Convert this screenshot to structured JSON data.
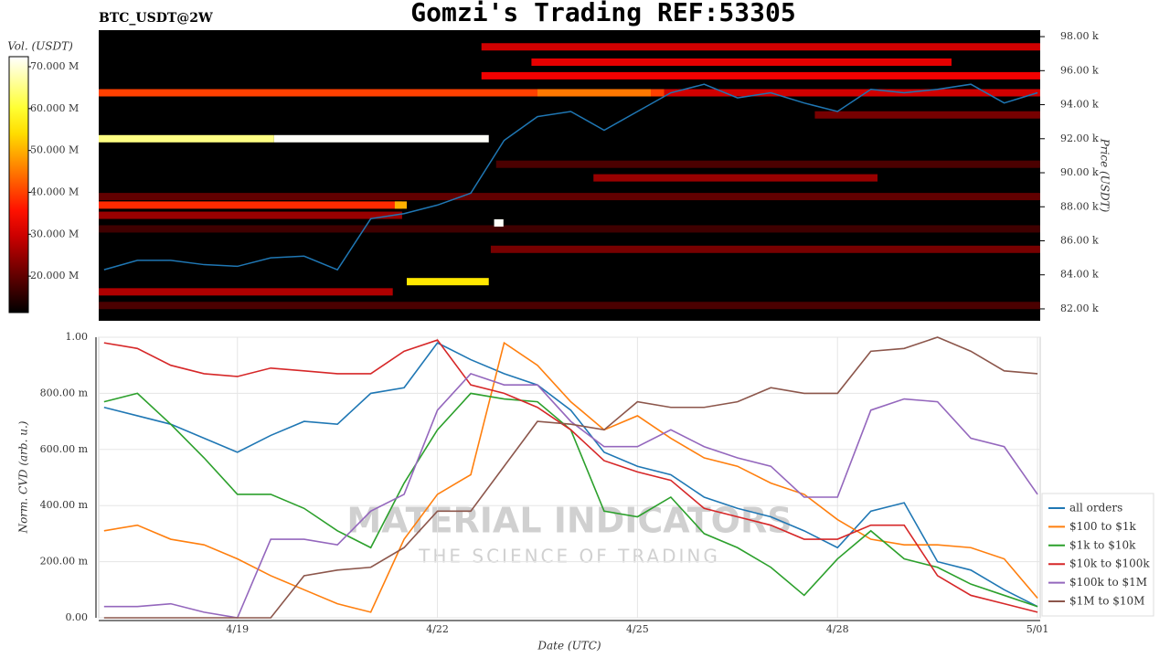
{
  "chart_data": [
    {
      "type": "heatmap",
      "title": "Gomzi's Trading REF:53305",
      "subtitle": "BTC_USDT@2W",
      "y_label": "Price (USDT)",
      "xlim": [
        16.92,
        31.04
      ],
      "ylim": [
        81.3,
        98.38
      ],
      "yticks": [
        {
          "value": 82,
          "label": "82.00 k"
        },
        {
          "value": 84,
          "label": "84.00 k"
        },
        {
          "value": 86,
          "label": "86.00 k"
        },
        {
          "value": 88,
          "label": "88.00 k"
        },
        {
          "value": 90,
          "label": "90.00 k"
        },
        {
          "value": 92,
          "label": "92.00 k"
        },
        {
          "value": 94,
          "label": "94.00 k"
        },
        {
          "value": 96,
          "label": "96.00 k"
        },
        {
          "value": 98,
          "label": "98.00 k"
        }
      ],
      "colorbar": {
        "label": "Vol. (USDT)",
        "lim": [
          11.3,
          72.4
        ],
        "colormap": "hot",
        "ticks": [
          {
            "value": 20,
            "label": "20.000 M"
          },
          {
            "value": 30,
            "label": "30.000 M"
          },
          {
            "value": 40,
            "label": "40.000 M"
          },
          {
            "value": 50,
            "label": "50.000 M"
          },
          {
            "value": 60,
            "label": "60.000 M"
          },
          {
            "value": 70,
            "label": "70.000 M"
          }
        ]
      },
      "levels": [
        {
          "price": 82.2,
          "x": [
            16.92,
            31.04
          ],
          "volume": 18
        },
        {
          "price": 83.0,
          "x": [
            16.92,
            21.33
          ],
          "volume": 27
        },
        {
          "price": 85.5,
          "x": [
            22.8,
            31.04
          ],
          "volume": 22
        },
        {
          "price": 86.7,
          "x": [
            16.92,
            31.04
          ],
          "volume": 17
        },
        {
          "price": 87.5,
          "x": [
            16.92,
            21.47
          ],
          "volume": 25
        },
        {
          "price": 88.6,
          "x": [
            16.92,
            31.04
          ],
          "volume": 20
        },
        {
          "price": 90.5,
          "x": [
            22.88,
            31.04
          ],
          "volume": 18
        },
        {
          "price": 89.7,
          "x": [
            24.34,
            28.6
          ],
          "volume": 25
        },
        {
          "price": 93.4,
          "x": [
            27.66,
            31.04
          ],
          "volume": 22
        },
        {
          "price": 97.4,
          "x": [
            22.66,
            31.04
          ],
          "volume": 30
        },
        {
          "price": 96.5,
          "x": [
            23.41,
            29.71
          ],
          "volume": 32
        },
        {
          "price": 95.7,
          "x": [
            22.66,
            31.04
          ],
          "volume": 33
        },
        {
          "price": 94.7,
          "x": [
            25.4,
            31.04
          ],
          "volume": 30
        },
        {
          "price": 94.7,
          "x": [
            16.92,
            25.4
          ],
          "volume": 40
        },
        {
          "price": 94.7,
          "x": [
            23.5,
            25.2
          ],
          "volume": 45
        },
        {
          "price": 88.1,
          "x": [
            16.92,
            21.47
          ],
          "volume": 38
        },
        {
          "price": 88.1,
          "x": [
            21.36,
            21.54
          ],
          "volume": 50
        },
        {
          "price": 83.6,
          "x": [
            21.54,
            22.77
          ],
          "volume": 55
        },
        {
          "price": 92.0,
          "x": [
            16.92,
            19.55
          ],
          "volume": 65
        },
        {
          "price": 92.0,
          "x": [
            19.55,
            22.77
          ],
          "volume": 72
        },
        {
          "price": 87.05,
          "x": [
            22.85,
            22.99
          ],
          "volume": 72
        }
      ],
      "x": [
        17,
        17.5,
        18,
        18.5,
        19,
        19.5,
        20,
        20.5,
        21,
        21.5,
        22,
        22.5,
        23,
        23.5,
        24,
        24.5,
        25,
        25.5,
        26,
        26.5,
        27,
        27.5,
        28,
        28.5,
        29,
        29.5,
        30,
        30.5,
        31
      ],
      "price": {
        "color": "#1f77b4",
        "values": [
          84.3,
          84.85,
          84.85,
          84.6,
          84.5,
          85.0,
          85.1,
          84.3,
          87.3,
          87.6,
          88.1,
          88.8,
          91.9,
          93.3,
          93.6,
          92.5,
          93.6,
          94.7,
          95.2,
          94.4,
          94.7,
          94.1,
          93.6,
          94.9,
          94.7,
          94.9,
          95.2,
          94.1,
          94.7
        ]
      }
    },
    {
      "type": "line",
      "x_label": "Date (UTC)",
      "y_label": "Norm. CVD (arb. u.)",
      "xlim": [
        16.92,
        31.04
      ],
      "ylim": [
        0,
        1
      ],
      "xticks": [
        {
          "value": 19,
          "label": "4/19"
        },
        {
          "value": 22,
          "label": "4/22"
        },
        {
          "value": 25,
          "label": "4/25"
        },
        {
          "value": 28,
          "label": "4/28"
        },
        {
          "value": 31,
          "label": "5/01"
        }
      ],
      "yticks": [
        {
          "value": 0,
          "label": "0.00"
        },
        {
          "value": 0.2,
          "label": "200.00 m"
        },
        {
          "value": 0.4,
          "label": "400.00 m"
        },
        {
          "value": 0.6,
          "label": "600.00 m"
        },
        {
          "value": 0.8,
          "label": "800.00 m"
        },
        {
          "value": 1,
          "label": "1.00"
        }
      ],
      "grid": true,
      "legend": "right",
      "watermark": {
        "title": "MATERIAL INDICATORS",
        "subtitle": "THE SCIENCE OF TRADING"
      },
      "x": [
        17,
        17.5,
        18,
        18.5,
        19,
        19.5,
        20,
        20.5,
        21,
        21.5,
        22,
        22.5,
        23,
        23.5,
        24,
        24.5,
        25,
        25.5,
        26,
        26.5,
        27,
        27.5,
        28,
        28.5,
        29,
        29.5,
        30,
        30.5,
        31
      ],
      "series": [
        {
          "name": "all orders",
          "color": "#1f77b4",
          "values": [
            0.75,
            0.72,
            0.69,
            0.64,
            0.59,
            0.65,
            0.7,
            0.69,
            0.8,
            0.82,
            0.98,
            0.92,
            0.87,
            0.83,
            0.74,
            0.59,
            0.54,
            0.51,
            0.43,
            0.39,
            0.36,
            0.31,
            0.25,
            0.38,
            0.41,
            0.2,
            0.17,
            0.1,
            0.04
          ]
        },
        {
          "name": "$100 to $1k",
          "color": "#ff7f0e",
          "values": [
            0.31,
            0.33,
            0.28,
            0.26,
            0.21,
            0.15,
            0.1,
            0.05,
            0.02,
            0.28,
            0.44,
            0.51,
            0.98,
            0.9,
            0.77,
            0.67,
            0.72,
            0.64,
            0.57,
            0.54,
            0.48,
            0.44,
            0.35,
            0.28,
            0.26,
            0.26,
            0.25,
            0.21,
            0.07
          ]
        },
        {
          "name": "$1k to $10k",
          "color": "#2ca02c",
          "values": [
            0.77,
            0.8,
            0.69,
            0.57,
            0.44,
            0.44,
            0.39,
            0.31,
            0.25,
            0.48,
            0.67,
            0.8,
            0.78,
            0.77,
            0.67,
            0.38,
            0.36,
            0.43,
            0.3,
            0.25,
            0.18,
            0.08,
            0.21,
            0.31,
            0.21,
            0.18,
            0.12,
            0.08,
            0.04
          ]
        },
        {
          "name": "$10k to $100k",
          "color": "#d62728",
          "values": [
            0.98,
            0.96,
            0.9,
            0.87,
            0.86,
            0.89,
            0.88,
            0.87,
            0.87,
            0.95,
            0.99,
            0.83,
            0.8,
            0.75,
            0.67,
            0.56,
            0.52,
            0.49,
            0.39,
            0.36,
            0.33,
            0.28,
            0.28,
            0.33,
            0.33,
            0.15,
            0.08,
            0.05,
            0.02
          ]
        },
        {
          "name": "$100k to $1M",
          "color": "#9467bd",
          "values": [
            0.04,
            0.04,
            0.05,
            0.02,
            0,
            0.28,
            0.28,
            0.26,
            0.38,
            0.44,
            0.74,
            0.87,
            0.83,
            0.83,
            0.7,
            0.61,
            0.61,
            0.67,
            0.61,
            0.57,
            0.54,
            0.43,
            0.43,
            0.74,
            0.78,
            0.77,
            0.64,
            0.61,
            0.44
          ]
        },
        {
          "name": "$1M to $10M",
          "color": "#8c564b",
          "values": [
            0,
            0,
            0,
            0,
            0,
            0,
            0.15,
            0.17,
            0.18,
            0.25,
            0.38,
            0.38,
            0.54,
            0.7,
            0.69,
            0.67,
            0.77,
            0.75,
            0.75,
            0.77,
            0.82,
            0.8,
            0.8,
            0.95,
            0.96,
            1,
            0.95,
            0.88,
            0.87
          ]
        }
      ]
    }
  ]
}
